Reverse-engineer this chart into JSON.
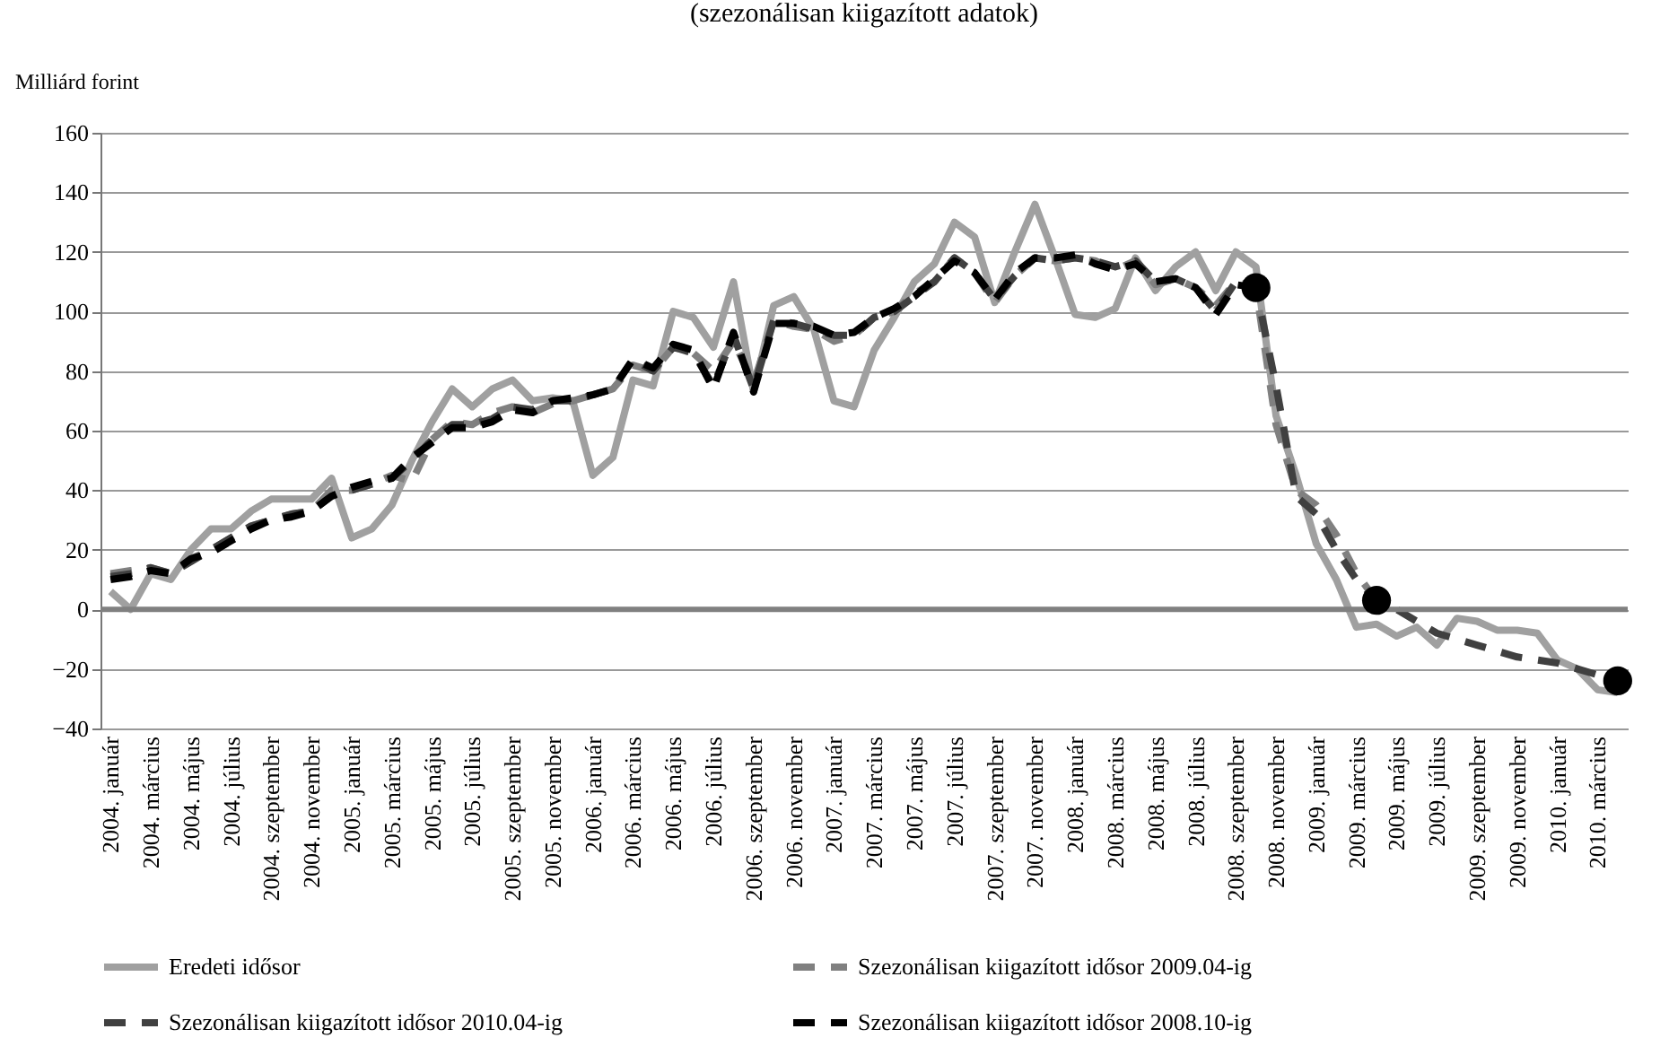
{
  "chart_data": {
    "type": "line",
    "title": "(szezonálisan kiigazított adatok)",
    "ylabel": "Milliárd forint",
    "categories": [
      "2004. január",
      null,
      "2004. március",
      null,
      "2004. május",
      null,
      "2004. július",
      null,
      "2004. szeptember",
      null,
      "2004. november",
      null,
      "2005. január",
      null,
      "2005. március",
      null,
      "2005. május",
      null,
      "2005. július",
      null,
      "2005. szeptember",
      null,
      "2005. november",
      null,
      "2006. január",
      null,
      "2006. március",
      null,
      "2006. május",
      null,
      "2006. július",
      null,
      "2006. szeptember",
      null,
      "2006. november",
      null,
      "2007. január",
      null,
      "2007. március",
      null,
      "2007. május",
      null,
      "2007. július",
      null,
      "2007. szeptember",
      null,
      "2007. november",
      null,
      "2008. január",
      null,
      "2008. március",
      null,
      "2008. május",
      null,
      "2008. július",
      null,
      "2008. szeptember",
      null,
      "2008. november",
      null,
      "2009. január",
      null,
      "2009. március",
      null,
      "2009. május",
      null,
      "2009. július",
      null,
      "2009. szeptember",
      null,
      "2009. november",
      null,
      "2010. január",
      null,
      "2010. március",
      null
    ],
    "series": [
      {
        "name": "Eredeti idősor",
        "color": "#a0a0a0",
        "line_style": "solid",
        "values": [
          6,
          0,
          12,
          10,
          20,
          27,
          27,
          33,
          37,
          37,
          37,
          44,
          24,
          27,
          35,
          50,
          63,
          74,
          68,
          74,
          77,
          70,
          71,
          70,
          45,
          51,
          77,
          75,
          100,
          98,
          88,
          110,
          73,
          102,
          105,
          94,
          70,
          68,
          87,
          98,
          110,
          116,
          130,
          125,
          103,
          120,
          136,
          118,
          99,
          98,
          101,
          118,
          107,
          115,
          120,
          107,
          120,
          115,
          65,
          45,
          22,
          10,
          -6,
          -5,
          -9,
          -6,
          -12,
          -3,
          -4,
          -7,
          -7,
          -8,
          -17,
          -20,
          -27,
          -28
        ]
      },
      {
        "name": "Szezonálisan kiigazított idősor 2009.04-ig",
        "color": "#808080",
        "line_style": "dashed",
        "values": [
          12,
          13,
          14,
          12,
          17,
          20,
          24,
          28,
          30,
          32,
          33,
          40,
          40,
          42,
          45,
          43,
          57,
          63,
          62,
          66,
          68,
          66,
          69,
          70,
          72,
          74,
          82,
          80,
          88,
          86,
          80,
          90,
          76,
          97,
          95,
          94,
          90,
          92,
          98,
          100,
          106,
          110,
          118,
          113,
          103,
          112,
          118,
          117,
          118,
          117,
          114,
          117,
          109,
          111,
          108,
          102,
          110,
          108,
          62,
          40,
          35,
          25,
          12,
          3,
          null,
          null,
          null,
          null,
          null,
          null,
          null,
          null,
          null,
          null,
          null,
          null
        ]
      },
      {
        "name": "Szezonálisan kiigazított idősor 2010.04-ig",
        "color": "#404040",
        "line_style": "dashed",
        "values": [
          11,
          12,
          14,
          12,
          16,
          20,
          24,
          28,
          30,
          32,
          33,
          38,
          40,
          42,
          44,
          50,
          57,
          62,
          62,
          64,
          68,
          67,
          70,
          70,
          72,
          74,
          84,
          80,
          88,
          86,
          75,
          92,
          74,
          97,
          96,
          94,
          92,
          92,
          98,
          100,
          105,
          110,
          118,
          113,
          104,
          112,
          118,
          117,
          118,
          117,
          115,
          117,
          110,
          111,
          108,
          100,
          110,
          108,
          75,
          38,
          32,
          20,
          10,
          3,
          0,
          -4,
          -8,
          -10,
          -12,
          -14,
          -16,
          -17,
          -18,
          -20,
          -22,
          -24
        ]
      },
      {
        "name": "Szezonálisan kiigazított idősor 2008.10-ig",
        "color": "#000000",
        "line_style": "dashed",
        "values": [
          10,
          11,
          13,
          12,
          17,
          19,
          23,
          27,
          30,
          31,
          33,
          38,
          41,
          43,
          44,
          51,
          56,
          61,
          61,
          63,
          67,
          66,
          70,
          71,
          72,
          74,
          84,
          81,
          89,
          87,
          74,
          93,
          73,
          96,
          96,
          95,
          92,
          93,
          98,
          101,
          105,
          111,
          117,
          113,
          104,
          113,
          118,
          118,
          119,
          116,
          114,
          116,
          110,
          111,
          108,
          99,
          109,
          108,
          null,
          null,
          null,
          null,
          null,
          null,
          null,
          null,
          null,
          null,
          null,
          null,
          null,
          null,
          null,
          null,
          null,
          null
        ]
      },
      {
        "type": "scatter",
        "color": "#000000",
        "marker": "circle",
        "values": [
          null,
          null,
          null,
          null,
          null,
          null,
          null,
          null,
          null,
          null,
          null,
          null,
          null,
          null,
          null,
          null,
          null,
          null,
          null,
          null,
          null,
          null,
          null,
          null,
          null,
          null,
          null,
          null,
          null,
          null,
          null,
          null,
          null,
          null,
          null,
          null,
          null,
          null,
          null,
          null,
          null,
          null,
          null,
          null,
          null,
          null,
          null,
          null,
          null,
          null,
          null,
          null,
          null,
          null,
          null,
          null,
          null,
          108,
          null,
          null,
          null,
          null,
          null,
          3,
          null,
          null,
          null,
          null,
          null,
          null,
          null,
          null,
          null,
          null,
          null,
          -24
        ]
      }
    ],
    "ylim": [
      -40,
      160
    ],
    "yticks": [
      -40,
      -20,
      0,
      20,
      40,
      60,
      80,
      100,
      120,
      140,
      160
    ],
    "grid": "y",
    "legend": "bottom",
    "ref_lines": [
      {
        "axis": "y",
        "value": 0,
        "color": "#808080"
      }
    ]
  }
}
